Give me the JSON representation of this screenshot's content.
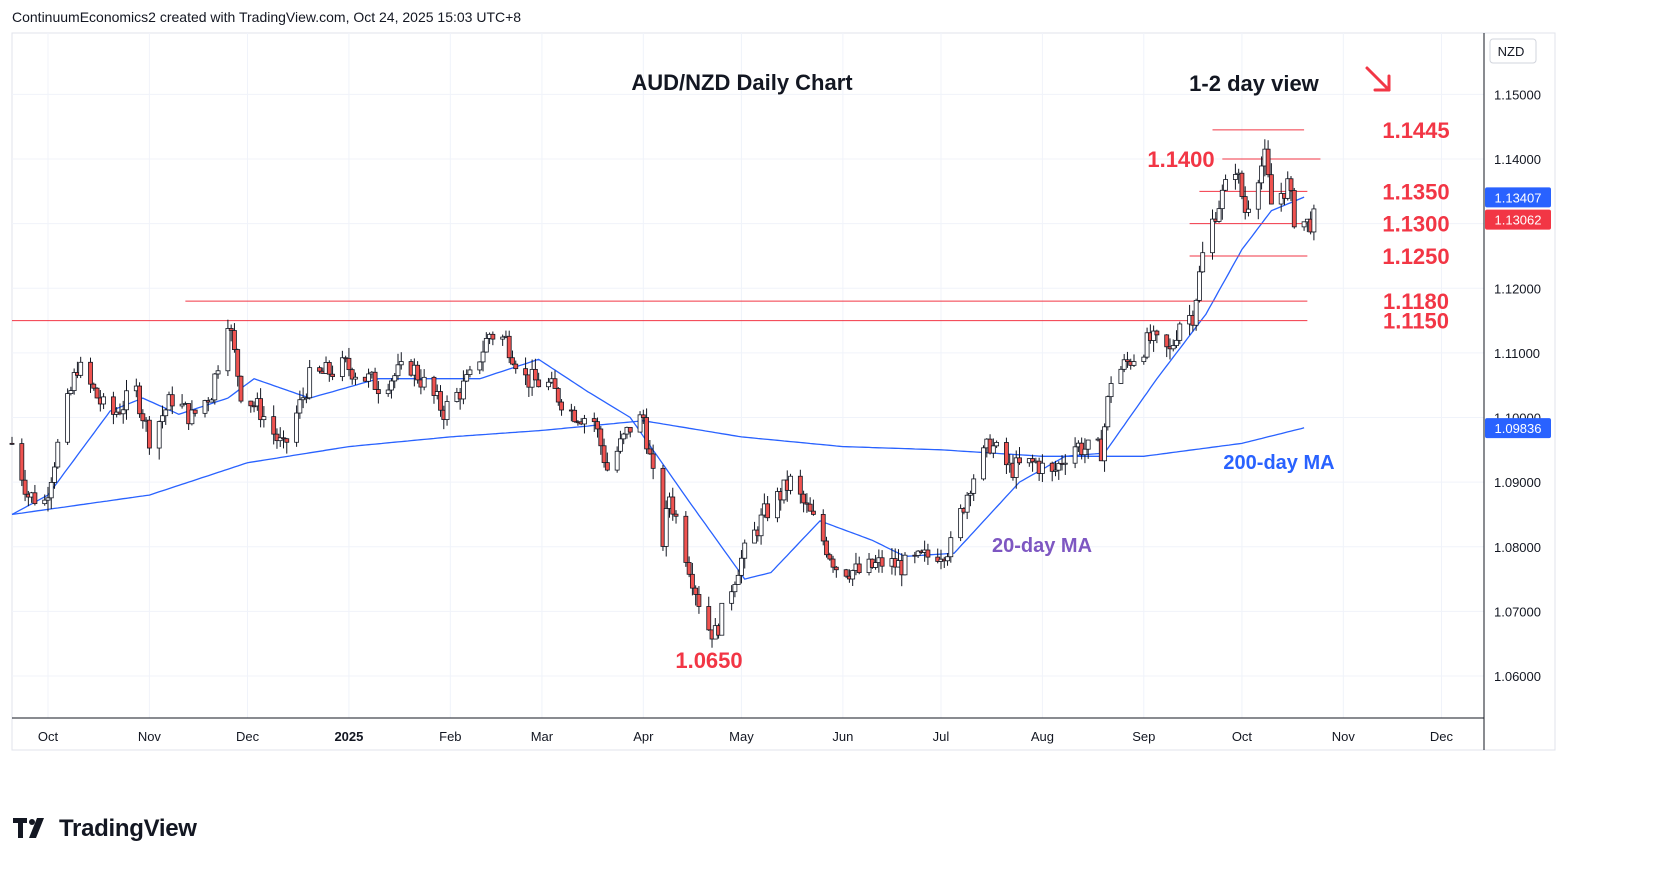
{
  "header": {
    "text": "ContinuumEconomics2 created with TradingView.com, Oct 24, 2025 15:03 UTC+8"
  },
  "footer": {
    "brand": "TradingView"
  },
  "colors": {
    "up": "#26a69a",
    "down": "#ef5350",
    "candle_down_fill": "#ef5350",
    "ma20": "#2962ff",
    "ma200": "#2962ff",
    "annotation": "#f23645",
    "grid": "#f0f3fa",
    "axis_text": "#131722",
    "label_purple": "#7e57c2",
    "label_blue": "#2962ff"
  },
  "chart_data": {
    "type": "candlestick",
    "title": "AUD/NZD Daily Chart",
    "subtitle": "1-2 day view",
    "direction_icon": "arrow-down-right-icon",
    "currency": "NZD",
    "ylim": [
      1.0535,
      1.1595
    ],
    "y_ticks": [
      "1.06000",
      "1.07000",
      "1.08000",
      "1.09000",
      "1.10000",
      "1.11000",
      "1.12000",
      "1.13000",
      "1.14000",
      "1.15000"
    ],
    "x_ticks": [
      "Oct",
      "Nov",
      "Dec",
      "2025",
      "Feb",
      "Mar",
      "Apr",
      "May",
      "Jun",
      "Jul",
      "Aug",
      "Sep",
      "Oct",
      "Nov",
      "Dec"
    ],
    "x_tick_dates": [
      "2024-10-01",
      "2024-11-01",
      "2024-12-01",
      "2025-01-01",
      "2025-02-01",
      "2025-03-01",
      "2025-04-01",
      "2025-05-01",
      "2025-06-01",
      "2025-07-01",
      "2025-08-01",
      "2025-09-01",
      "2025-10-01",
      "2025-11-01",
      "2025-12-01"
    ],
    "price_labels": [
      {
        "text": "1.13407",
        "value": 1.13407,
        "color": "#2962ff"
      },
      {
        "text": "1.13062",
        "value": 1.13062,
        "color": "#f23645"
      },
      {
        "text": "1.09836",
        "value": 1.09836,
        "color": "#2962ff"
      }
    ],
    "levels": [
      {
        "label": "1.1445",
        "value": 1.1445,
        "from": "2025-09-22",
        "to": "2025-10-20"
      },
      {
        "label": "1.1400",
        "value": 1.14,
        "from": "2025-09-25",
        "to": "2025-10-25"
      },
      {
        "label": "1.1350",
        "value": 1.135,
        "from": "2025-09-18",
        "to": "2025-10-21"
      },
      {
        "label": "1.1300",
        "value": 1.13,
        "from": "2025-09-15",
        "to": "2025-10-21"
      },
      {
        "label": "1.1250",
        "value": 1.125,
        "from": "2025-09-15",
        "to": "2025-10-21"
      },
      {
        "label": "1.1180",
        "value": 1.118,
        "from": "2024-11-12",
        "to": "2025-10-21"
      },
      {
        "label": "1.1150",
        "value": 1.115,
        "from": "2024-09-20",
        "to": "2025-10-21"
      }
    ],
    "low_label": {
      "text": "1.0650",
      "value": 1.065,
      "date": "2025-04-20"
    },
    "ma_labels": [
      {
        "text": "20-day MA",
        "color": "#7e57c2"
      },
      {
        "text": "200-day MA",
        "color": "#2962ff"
      }
    ],
    "anchors": [
      [
        "2024-09-20",
        1.096
      ],
      [
        "2024-09-25",
        1.088
      ],
      [
        "2024-09-30",
        1.087
      ],
      [
        "2024-10-07",
        1.102
      ],
      [
        "2024-10-10",
        1.108
      ],
      [
        "2024-10-20",
        1.1
      ],
      [
        "2024-10-28",
        1.104
      ],
      [
        "2024-11-01",
        1.097
      ],
      [
        "2024-11-08",
        1.103
      ],
      [
        "2024-11-14",
        1.1
      ],
      [
        "2024-11-20",
        1.104
      ],
      [
        "2024-11-25",
        1.1155
      ],
      [
        "2024-11-29",
        1.104
      ],
      [
        "2024-12-05",
        1.101
      ],
      [
        "2024-12-12",
        1.095
      ],
      [
        "2024-12-20",
        1.106
      ],
      [
        "2024-12-31",
        1.108
      ],
      [
        "2025-01-10",
        1.105
      ],
      [
        "2025-01-20",
        1.108
      ],
      [
        "2025-01-30",
        1.101
      ],
      [
        "2025-02-07",
        1.106
      ],
      [
        "2025-02-13",
        1.113
      ],
      [
        "2025-02-18",
        1.112
      ],
      [
        "2025-02-24",
        1.106
      ],
      [
        "2025-03-03",
        1.105
      ],
      [
        "2025-03-10",
        1.101
      ],
      [
        "2025-03-17",
        1.0995
      ],
      [
        "2025-03-21",
        1.092
      ],
      [
        "2025-03-28",
        1.0985
      ],
      [
        "2025-04-01",
        1.1
      ],
      [
        "2025-04-07",
        1.081
      ],
      [
        "2025-04-09",
        1.088
      ],
      [
        "2025-04-14",
        1.079
      ],
      [
        "2025-04-20",
        1.068
      ],
      [
        "2025-04-23",
        1.0665
      ],
      [
        "2025-04-30",
        1.077
      ],
      [
        "2025-05-08",
        1.085
      ],
      [
        "2025-05-16",
        1.09
      ],
      [
        "2025-05-23",
        1.084
      ],
      [
        "2025-05-30",
        1.077
      ],
      [
        "2025-06-06",
        1.076
      ],
      [
        "2025-06-13",
        1.0775
      ],
      [
        "2025-06-20",
        1.077
      ],
      [
        "2025-06-27",
        1.0785
      ],
      [
        "2025-07-04",
        1.08
      ],
      [
        "2025-07-10",
        1.09
      ],
      [
        "2025-07-16",
        1.096
      ],
      [
        "2025-07-22",
        1.092
      ],
      [
        "2025-07-30",
        1.093
      ],
      [
        "2025-08-04",
        1.091
      ],
      [
        "2025-08-10",
        1.096
      ],
      [
        "2025-08-15",
        1.095
      ],
      [
        "2025-08-19",
        1.095
      ],
      [
        "2025-08-22",
        1.106
      ],
      [
        "2025-08-28",
        1.109
      ],
      [
        "2025-09-03",
        1.112
      ],
      [
        "2025-09-09",
        1.11
      ],
      [
        "2025-09-12",
        1.115
      ],
      [
        "2025-09-16",
        1.116
      ],
      [
        "2025-09-19",
        1.125
      ],
      [
        "2025-09-23",
        1.132
      ],
      [
        "2025-09-29",
        1.139
      ],
      [
        "2025-10-02",
        1.132
      ],
      [
        "2025-10-06",
        1.138
      ],
      [
        "2025-10-08",
        1.14
      ],
      [
        "2025-10-10",
        1.133
      ],
      [
        "2025-10-15",
        1.136
      ],
      [
        "2025-10-17",
        1.131
      ],
      [
        "2025-10-21",
        1.13
      ],
      [
        "2025-10-23",
        1.1306
      ]
    ],
    "ma20": [
      [
        "2024-09-20",
        1.085
      ],
      [
        "2024-10-01",
        1.088
      ],
      [
        "2024-10-20",
        1.101
      ],
      [
        "2024-10-30",
        1.103
      ],
      [
        "2024-11-10",
        1.1005
      ],
      [
        "2024-11-25",
        1.103
      ],
      [
        "2024-12-03",
        1.106
      ],
      [
        "2024-12-20",
        1.103
      ],
      [
        "2025-01-10",
        1.106
      ],
      [
        "2025-01-25",
        1.106
      ],
      [
        "2025-02-10",
        1.106
      ],
      [
        "2025-02-28",
        1.109
      ],
      [
        "2025-03-15",
        1.104
      ],
      [
        "2025-03-28",
        1.1
      ],
      [
        "2025-04-15",
        1.087
      ],
      [
        "2025-05-02",
        1.075
      ],
      [
        "2025-05-10",
        1.076
      ],
      [
        "2025-05-25",
        1.084
      ],
      [
        "2025-06-10",
        1.081
      ],
      [
        "2025-06-20",
        1.0785
      ],
      [
        "2025-07-05",
        1.079
      ],
      [
        "2025-07-25",
        1.09
      ],
      [
        "2025-08-08",
        1.094
      ],
      [
        "2025-08-20",
        1.0945
      ],
      [
        "2025-09-05",
        1.106
      ],
      [
        "2025-09-20",
        1.116
      ],
      [
        "2025-10-01",
        1.126
      ],
      [
        "2025-10-10",
        1.132
      ],
      [
        "2025-10-20",
        1.1341
      ]
    ],
    "ma200": [
      [
        "2024-09-20",
        1.085
      ],
      [
        "2024-11-01",
        1.088
      ],
      [
        "2024-12-01",
        1.093
      ],
      [
        "2025-01-01",
        1.0955
      ],
      [
        "2025-02-01",
        1.097
      ],
      [
        "2025-03-01",
        1.098
      ],
      [
        "2025-04-01",
        1.0995
      ],
      [
        "2025-05-01",
        1.097
      ],
      [
        "2025-06-01",
        1.0955
      ],
      [
        "2025-07-01",
        1.095
      ],
      [
        "2025-08-01",
        1.094
      ],
      [
        "2025-09-01",
        1.094
      ],
      [
        "2025-10-01",
        1.096
      ],
      [
        "2025-10-20",
        1.0984
      ]
    ]
  }
}
